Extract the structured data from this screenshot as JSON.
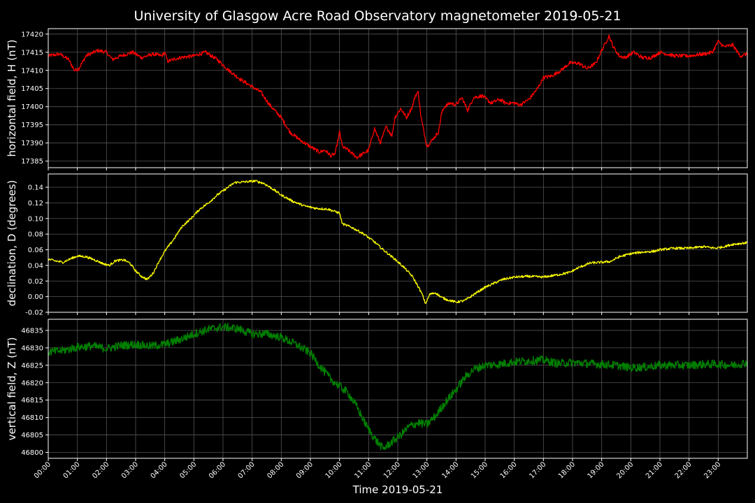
{
  "chart_data": {
    "type": "line",
    "title": "University of Glasgow Acre Road Observatory magnetometer 2019-05-21",
    "xlabel": "Time 2019-05-21",
    "x_ticks": [
      "00:00",
      "01:00",
      "02:00",
      "03:00",
      "04:00",
      "05:00",
      "06:00",
      "07:00",
      "08:00",
      "09:00",
      "10:00",
      "11:00",
      "12:00",
      "13:00",
      "14:00",
      "15:00",
      "16:00",
      "17:00",
      "18:00",
      "19:00",
      "20:00",
      "21:00",
      "22:00",
      "23:00"
    ],
    "xlim": [
      0,
      24
    ],
    "grid": true,
    "panels": [
      {
        "ylabel": "horizontal field, H (nT)",
        "color": "#ff0000",
        "ylim": [
          17383.2,
          17421.5
        ],
        "y_ticks": [
          17385,
          17390,
          17395,
          17400,
          17405,
          17410,
          17415,
          17420
        ],
        "tick_decimals": 0,
        "noise": 0.5,
        "points": [
          [
            0,
            17414
          ],
          [
            0.4,
            17414.5
          ],
          [
            0.7,
            17413
          ],
          [
            0.9,
            17410
          ],
          [
            1.05,
            17410.5
          ],
          [
            1.3,
            17414
          ],
          [
            1.7,
            17415.5
          ],
          [
            2.0,
            17415
          ],
          [
            2.2,
            17413
          ],
          [
            2.5,
            17414
          ],
          [
            2.9,
            17415
          ],
          [
            3.2,
            17413.5
          ],
          [
            3.6,
            17414.5
          ],
          [
            3.9,
            17414
          ],
          [
            4.0,
            17415
          ],
          [
            4.1,
            17412.5
          ],
          [
            4.5,
            17413.5
          ],
          [
            5.0,
            17414
          ],
          [
            5.4,
            17415
          ],
          [
            5.8,
            17413
          ],
          [
            6.2,
            17410
          ],
          [
            6.6,
            17407.5
          ],
          [
            7.0,
            17405.5
          ],
          [
            7.3,
            17404
          ],
          [
            7.6,
            17400.5
          ],
          [
            8.0,
            17397
          ],
          [
            8.3,
            17393
          ],
          [
            8.7,
            17390.5
          ],
          [
            9.0,
            17389
          ],
          [
            9.3,
            17387.5
          ],
          [
            9.5,
            17388
          ],
          [
            9.7,
            17386.5
          ],
          [
            9.85,
            17387
          ],
          [
            10.0,
            17393
          ],
          [
            10.1,
            17389
          ],
          [
            10.3,
            17388
          ],
          [
            10.6,
            17386
          ],
          [
            10.8,
            17387
          ],
          [
            11.0,
            17388
          ],
          [
            11.2,
            17394
          ],
          [
            11.4,
            17390
          ],
          [
            11.6,
            17394.5
          ],
          [
            11.8,
            17392
          ],
          [
            11.9,
            17397
          ],
          [
            12.1,
            17399.5
          ],
          [
            12.3,
            17397
          ],
          [
            12.5,
            17400
          ],
          [
            12.6,
            17403
          ],
          [
            12.7,
            17404
          ],
          [
            12.8,
            17397
          ],
          [
            12.9,
            17393
          ],
          [
            13.0,
            17389
          ],
          [
            13.2,
            17391
          ],
          [
            13.4,
            17393
          ],
          [
            13.5,
            17398
          ],
          [
            13.6,
            17400
          ],
          [
            13.8,
            17401
          ],
          [
            14.0,
            17400.5
          ],
          [
            14.2,
            17402.5
          ],
          [
            14.4,
            17399
          ],
          [
            14.6,
            17402.5
          ],
          [
            14.9,
            17403
          ],
          [
            15.2,
            17401
          ],
          [
            15.5,
            17402
          ],
          [
            15.7,
            17401
          ],
          [
            16.0,
            17401
          ],
          [
            16.2,
            17400.5
          ],
          [
            16.5,
            17402
          ],
          [
            16.8,
            17405
          ],
          [
            17.0,
            17408
          ],
          [
            17.3,
            17408.5
          ],
          [
            17.6,
            17410
          ],
          [
            17.9,
            17412
          ],
          [
            18.2,
            17412
          ],
          [
            18.5,
            17410.5
          ],
          [
            18.8,
            17412
          ],
          [
            19.0,
            17415.5
          ],
          [
            19.1,
            17417
          ],
          [
            19.25,
            17419.5
          ],
          [
            19.4,
            17416.5
          ],
          [
            19.6,
            17414
          ],
          [
            19.8,
            17413.5
          ],
          [
            20.1,
            17415
          ],
          [
            20.4,
            17413.5
          ],
          [
            20.7,
            17413.5
          ],
          [
            21.0,
            17415
          ],
          [
            21.5,
            17414
          ],
          [
            22.0,
            17414
          ],
          [
            22.5,
            17414.5
          ],
          [
            22.8,
            17415
          ],
          [
            23.0,
            17418
          ],
          [
            23.2,
            17416.5
          ],
          [
            23.5,
            17417
          ],
          [
            23.75,
            17414
          ],
          [
            24.0,
            17414.5
          ]
        ]
      },
      {
        "ylabel": "declination, D (degrees)",
        "color": "#ffff00",
        "ylim": [
          -0.02,
          0.157
        ],
        "y_ticks": [
          -0.02,
          0.0,
          0.02,
          0.04,
          0.06,
          0.08,
          0.1,
          0.12,
          0.14
        ],
        "tick_decimals": 2,
        "noise": 0.0015,
        "points": [
          [
            0,
            0.048
          ],
          [
            0.2,
            0.046
          ],
          [
            0.5,
            0.044
          ],
          [
            0.8,
            0.049
          ],
          [
            1.0,
            0.052
          ],
          [
            1.3,
            0.051
          ],
          [
            1.6,
            0.047
          ],
          [
            1.9,
            0.042
          ],
          [
            2.1,
            0.04
          ],
          [
            2.3,
            0.046
          ],
          [
            2.6,
            0.047
          ],
          [
            2.8,
            0.043
          ],
          [
            3.0,
            0.033
          ],
          [
            3.2,
            0.026
          ],
          [
            3.4,
            0.022
          ],
          [
            3.6,
            0.03
          ],
          [
            3.8,
            0.045
          ],
          [
            4.0,
            0.058
          ],
          [
            4.3,
            0.073
          ],
          [
            4.6,
            0.09
          ],
          [
            4.9,
            0.1
          ],
          [
            5.2,
            0.112
          ],
          [
            5.5,
            0.12
          ],
          [
            5.8,
            0.13
          ],
          [
            6.1,
            0.138
          ],
          [
            6.4,
            0.146
          ],
          [
            6.8,
            0.147
          ],
          [
            7.1,
            0.148
          ],
          [
            7.4,
            0.145
          ],
          [
            7.7,
            0.138
          ],
          [
            8.0,
            0.13
          ],
          [
            8.4,
            0.122
          ],
          [
            8.8,
            0.116
          ],
          [
            9.2,
            0.113
          ],
          [
            9.6,
            0.112
          ],
          [
            10.0,
            0.107
          ],
          [
            10.1,
            0.093
          ],
          [
            10.4,
            0.089
          ],
          [
            10.8,
            0.081
          ],
          [
            11.2,
            0.07
          ],
          [
            11.5,
            0.06
          ],
          [
            11.7,
            0.054
          ],
          [
            11.9,
            0.048
          ],
          [
            12.2,
            0.038
          ],
          [
            12.5,
            0.026
          ],
          [
            12.7,
            0.013
          ],
          [
            12.85,
            0.002
          ],
          [
            12.95,
            -0.009
          ],
          [
            13.1,
            0.003
          ],
          [
            13.3,
            0.005
          ],
          [
            13.5,
            -0.001
          ],
          [
            13.7,
            -0.004
          ],
          [
            14.0,
            -0.007
          ],
          [
            14.3,
            -0.005
          ],
          [
            14.5,
            0.0
          ],
          [
            14.7,
            0.005
          ],
          [
            15.0,
            0.012
          ],
          [
            15.3,
            0.017
          ],
          [
            15.6,
            0.022
          ],
          [
            16.0,
            0.025
          ],
          [
            16.5,
            0.026
          ],
          [
            17.0,
            0.025
          ],
          [
            17.5,
            0.028
          ],
          [
            17.9,
            0.031
          ],
          [
            18.2,
            0.037
          ],
          [
            18.6,
            0.043
          ],
          [
            19.0,
            0.044
          ],
          [
            19.3,
            0.045
          ],
          [
            19.6,
            0.051
          ],
          [
            20.0,
            0.055
          ],
          [
            20.4,
            0.057
          ],
          [
            20.8,
            0.058
          ],
          [
            21.0,
            0.06
          ],
          [
            21.5,
            0.062
          ],
          [
            22.0,
            0.062
          ],
          [
            22.5,
            0.064
          ],
          [
            22.9,
            0.062
          ],
          [
            23.2,
            0.064
          ],
          [
            23.5,
            0.067
          ],
          [
            24.0,
            0.069
          ]
        ]
      },
      {
        "ylabel": "vertical field, Z (nT)",
        "color": "#008000",
        "ylim": [
          46798.3,
          46838.2
        ],
        "y_ticks": [
          46800,
          46805,
          46810,
          46815,
          46820,
          46825,
          46830,
          46835
        ],
        "tick_decimals": 0,
        "noise": 1.2,
        "points": [
          [
            0,
            46828.8
          ],
          [
            0.5,
            46829.2
          ],
          [
            1.0,
            46830.2
          ],
          [
            1.5,
            46830.5
          ],
          [
            2.0,
            46829.8
          ],
          [
            2.5,
            46830.7
          ],
          [
            3.0,
            46831
          ],
          [
            3.5,
            46830.5
          ],
          [
            4.0,
            46831
          ],
          [
            4.5,
            46832.3
          ],
          [
            5.0,
            46834
          ],
          [
            5.5,
            46835.3
          ],
          [
            6.0,
            46836
          ],
          [
            6.5,
            46835.5
          ],
          [
            7.0,
            46834
          ],
          [
            7.5,
            46834
          ],
          [
            8.0,
            46833
          ],
          [
            8.5,
            46831
          ],
          [
            9.0,
            46828.5
          ],
          [
            9.3,
            46825
          ],
          [
            9.7,
            46821
          ],
          [
            10.0,
            46819
          ],
          [
            10.3,
            46817
          ],
          [
            10.6,
            46813
          ],
          [
            10.9,
            46808
          ],
          [
            11.2,
            46804
          ],
          [
            11.5,
            46801
          ],
          [
            11.8,
            46803
          ],
          [
            12.1,
            46805
          ],
          [
            12.4,
            46807.5
          ],
          [
            12.7,
            46808.5
          ],
          [
            13.0,
            46808
          ],
          [
            13.3,
            46810.5
          ],
          [
            13.6,
            46814
          ],
          [
            14.0,
            46818
          ],
          [
            14.3,
            46821.5
          ],
          [
            14.6,
            46823.8
          ],
          [
            15.0,
            46825
          ],
          [
            15.5,
            46825.3
          ],
          [
            16.0,
            46826
          ],
          [
            16.5,
            46826.3
          ],
          [
            17.0,
            46826.5
          ],
          [
            17.5,
            46825.5
          ],
          [
            18.0,
            46825.8
          ],
          [
            18.5,
            46825.5
          ],
          [
            19.0,
            46825.3
          ],
          [
            19.5,
            46825
          ],
          [
            20.0,
            46824.3
          ],
          [
            20.5,
            46824.5
          ],
          [
            21.0,
            46825
          ],
          [
            21.5,
            46825
          ],
          [
            22.0,
            46825
          ],
          [
            22.5,
            46825.3
          ],
          [
            23.0,
            46825.3
          ],
          [
            23.5,
            46825
          ],
          [
            24.0,
            46825.8
          ]
        ]
      }
    ]
  }
}
